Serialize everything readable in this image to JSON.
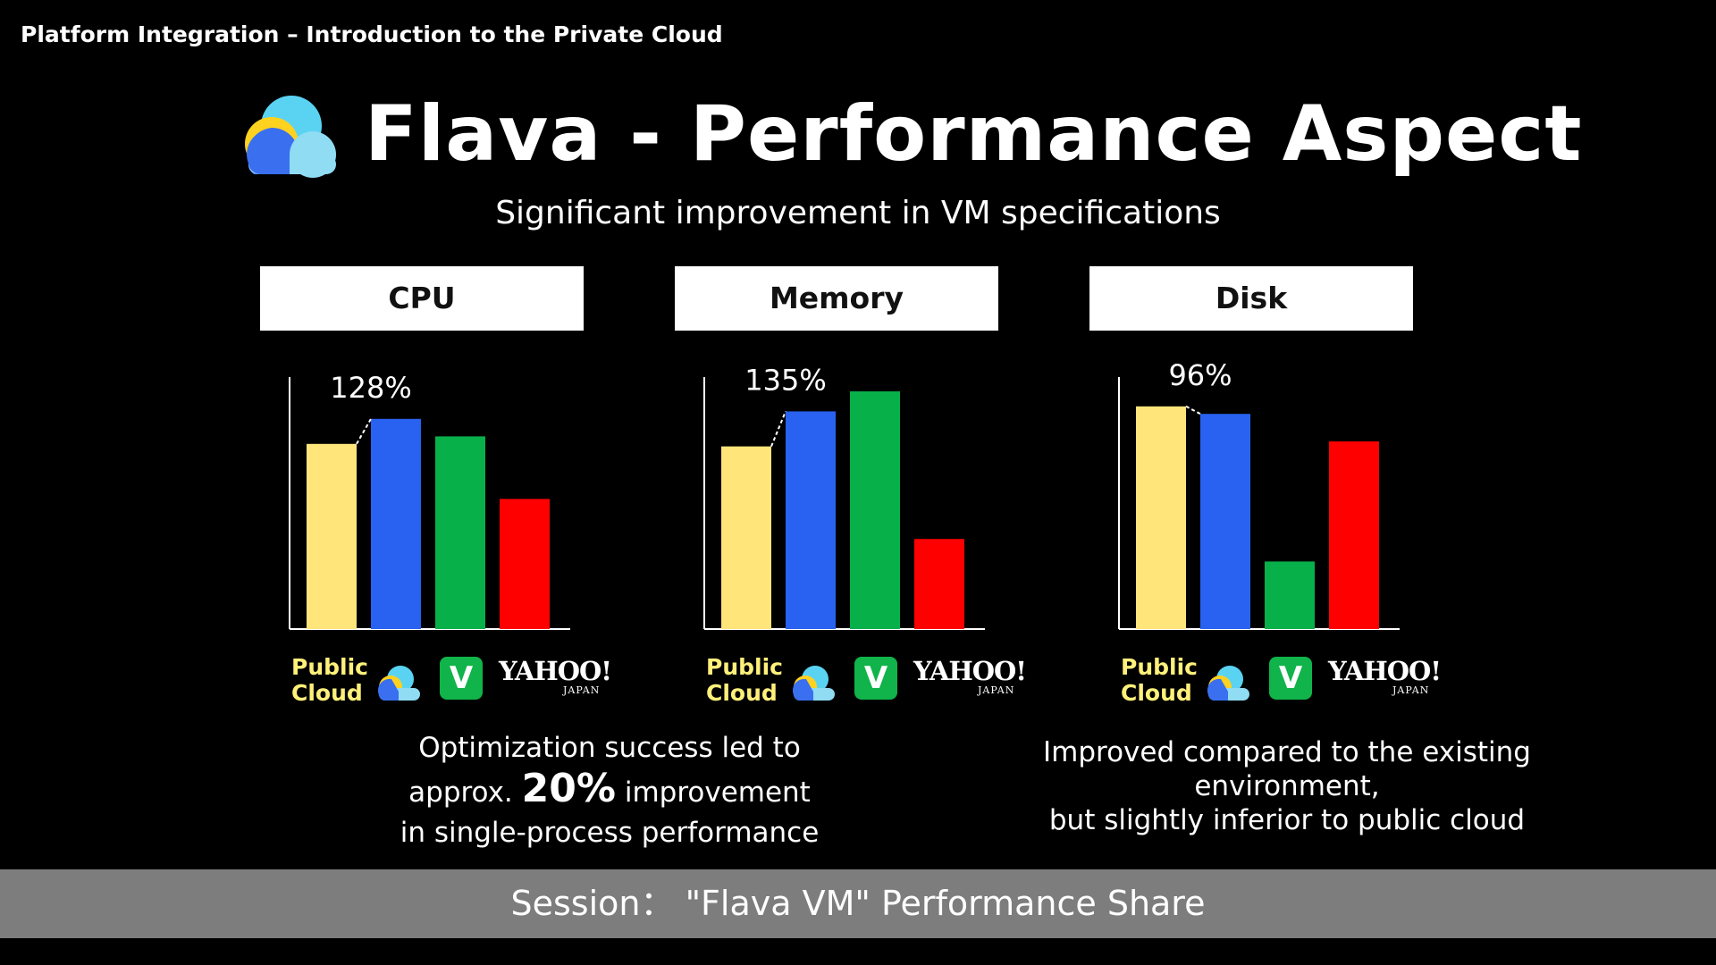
{
  "header": {
    "breadcrumb": "Platform Integration – Introduction to the Private Cloud"
  },
  "title": "Flava - Performance Aspect",
  "subtitle": "Significant improvement in VM specifications",
  "legend": {
    "public_cloud_line1": "Public",
    "public_cloud_line2": "Cloud",
    "flava_icon": "flava-cloud-icon",
    "v_icon_glyph": "V",
    "yahoo_word": "YAHOO!",
    "yahoo_sub": "JAPAN"
  },
  "colors": {
    "public_cloud": "#ffe57a",
    "flava": "#2962f0",
    "v": "#08b04a",
    "yahoo": "#ff0000"
  },
  "chart_data": [
    {
      "type": "bar",
      "title": "CPU",
      "categories": [
        "Public Cloud",
        "Flava",
        "V",
        "Yahoo! Japan"
      ],
      "values": [
        74,
        84,
        77,
        52
      ],
      "annotation": "128%",
      "ylim": [
        0,
        100
      ]
    },
    {
      "type": "bar",
      "title": "Memory",
      "categories": [
        "Public Cloud",
        "Flava",
        "V",
        "Yahoo! Japan"
      ],
      "values": [
        73,
        87,
        95,
        36
      ],
      "annotation": "135%",
      "ylim": [
        0,
        100
      ]
    },
    {
      "type": "bar",
      "title": "Disk",
      "categories": [
        "Public Cloud",
        "Flava",
        "V",
        "Yahoo! Japan"
      ],
      "values": [
        89,
        86,
        27,
        75
      ],
      "annotation": "96%",
      "ylim": [
        0,
        100
      ]
    }
  ],
  "notes": {
    "cpu_line1": "Optimization success led to",
    "cpu_line2_pre": "approx.",
    "cpu_line2_big": "20%",
    "cpu_line2_post": "improvement",
    "cpu_line3": "in single-process performance",
    "disk_line1": "Improved compared to the existing",
    "disk_line2": "environment,",
    "disk_line3": "but slightly inferior to public cloud"
  },
  "footer": {
    "session": "Session： \"Flava VM\" Performance Share"
  }
}
